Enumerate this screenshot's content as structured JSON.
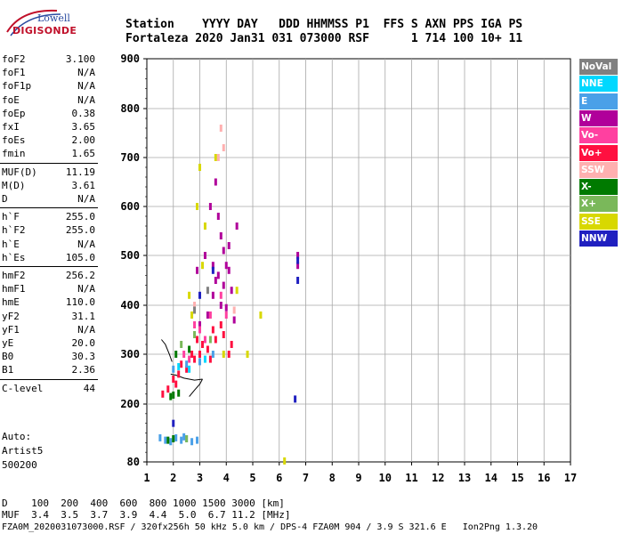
{
  "logo": {
    "line1": "Lowell",
    "line2": "DIGISONDE"
  },
  "header": {
    "row1": "Station    YYYY DAY   DDD HHMMSS P1  FFS S AXN PPS IGA PS",
    "row2": "Fortaleza 2020 Jan31 031 073000 RSF      1 714 100 10+ 11"
  },
  "params": [
    {
      "k": "foF2",
      "v": "3.100"
    },
    {
      "k": "foF1",
      "v": "N/A"
    },
    {
      "k": "foF1p",
      "v": "N/A"
    },
    {
      "k": "foE",
      "v": "N/A"
    },
    {
      "k": "foEp",
      "v": "0.38"
    },
    {
      "k": "fxI",
      "v": "3.65"
    },
    {
      "k": "foEs",
      "v": "2.00"
    },
    {
      "k": "fmin",
      "v": "1.65"
    },
    {
      "k": "MUF(D)",
      "v": "11.19"
    },
    {
      "k": "M(D)",
      "v": "3.61"
    },
    {
      "k": "D",
      "v": "N/A"
    },
    {
      "k": "h`F",
      "v": "255.0"
    },
    {
      "k": "h`F2",
      "v": "255.0"
    },
    {
      "k": "h`E",
      "v": "N/A"
    },
    {
      "k": "h`Es",
      "v": "105.0"
    },
    {
      "k": "hmF2",
      "v": "256.2"
    },
    {
      "k": "hmF1",
      "v": "N/A"
    },
    {
      "k": "hmE",
      "v": "110.0"
    },
    {
      "k": "yF2",
      "v": "31.1"
    },
    {
      "k": "yF1",
      "v": "N/A"
    },
    {
      "k": "yE",
      "v": "20.0"
    },
    {
      "k": "B0",
      "v": "30.3"
    },
    {
      "k": "B1",
      "v": "2.36"
    },
    {
      "k": "C-level",
      "v": "44"
    }
  ],
  "auto": {
    "line1": "Auto:",
    "line2": "Artist5",
    "line3": "500200"
  },
  "legend": [
    {
      "label": "NoVal",
      "color": "#808080"
    },
    {
      "label": "NNE",
      "color": "#00d8ff"
    },
    {
      "label": "E",
      "color": "#4aa0e8"
    },
    {
      "label": "W",
      "color": "#b0009a"
    },
    {
      "label": "Vo-",
      "color": "#ff40a0"
    },
    {
      "label": "Vo+",
      "color": "#ff1040"
    },
    {
      "label": "SSW",
      "color": "#ffb0b0"
    },
    {
      "label": "X-",
      "color": "#007a00"
    },
    {
      "label": "X+",
      "color": "#7ab85a"
    },
    {
      "label": "SSE",
      "color": "#d8d800"
    },
    {
      "label": "NNW",
      "color": "#2020c0"
    }
  ],
  "footer": {
    "d_row": "D    100  200  400  600  800 1000 1500 3000 [km]",
    "muf_row": "MUF  3.4  3.5  3.7  3.9  4.4  5.0  6.7 11.2 [MHz]",
    "file_row": "FZA0M_2020031073000.RSF / 320fx256h 50 kHz 5.0 km / DPS-4 FZA0M 904 / 3.9 S 321.6 E   Ion2Png 1.3.20"
  },
  "chart_data": {
    "type": "scatter",
    "title": "",
    "xlabel": "",
    "ylabel": "",
    "xlim": [
      1,
      17
    ],
    "ylim": [
      80,
      900
    ],
    "grid": true,
    "xticks": [
      1,
      2,
      3,
      4,
      5,
      6,
      7,
      8,
      9,
      10,
      11,
      12,
      13,
      14,
      15,
      16,
      17
    ],
    "yticks": [
      80,
      200,
      300,
      400,
      500,
      600,
      700,
      800,
      900
    ],
    "series": [
      {
        "name": "W",
        "color": "#b0009a",
        "points": [
          [
            3.7,
            580
          ],
          [
            3.8,
            540
          ],
          [
            3.9,
            510
          ],
          [
            4.0,
            480
          ],
          [
            4.1,
            470
          ],
          [
            3.6,
            450
          ],
          [
            3.9,
            440
          ],
          [
            4.2,
            430
          ],
          [
            3.5,
            420
          ],
          [
            3.8,
            400
          ],
          [
            4.0,
            395
          ],
          [
            3.3,
            380
          ],
          [
            4.3,
            370
          ],
          [
            3.0,
            360
          ],
          [
            3.6,
            650
          ],
          [
            3.4,
            600
          ],
          [
            3.2,
            500
          ],
          [
            2.9,
            470
          ],
          [
            4.4,
            560
          ],
          [
            6.7,
            480
          ],
          [
            6.7,
            500
          ],
          [
            3.7,
            460
          ],
          [
            4.1,
            520
          ],
          [
            3.5,
            480
          ]
        ]
      },
      {
        "name": "Vo+",
        "color": "#ff1040",
        "points": [
          [
            2.0,
            250
          ],
          [
            2.2,
            260
          ],
          [
            2.5,
            270
          ],
          [
            2.8,
            290
          ],
          [
            3.0,
            300
          ],
          [
            3.3,
            310
          ],
          [
            3.6,
            330
          ],
          [
            3.9,
            340
          ],
          [
            4.2,
            320
          ],
          [
            2.3,
            280
          ],
          [
            2.7,
            300
          ],
          [
            3.1,
            320
          ],
          [
            3.5,
            350
          ],
          [
            1.8,
            230
          ],
          [
            1.6,
            220
          ],
          [
            2.1,
            240
          ],
          [
            3.8,
            360
          ],
          [
            4.1,
            300
          ],
          [
            2.9,
            330
          ],
          [
            3.4,
            290
          ]
        ]
      },
      {
        "name": "Vo-",
        "color": "#ff40a0",
        "points": [
          [
            2.6,
            290
          ],
          [
            3.0,
            350
          ],
          [
            3.4,
            380
          ],
          [
            3.8,
            420
          ],
          [
            2.4,
            300
          ],
          [
            3.2,
            330
          ],
          [
            4.0,
            380
          ],
          [
            2.8,
            360
          ]
        ]
      },
      {
        "name": "E",
        "color": "#4aa0e8",
        "points": [
          [
            1.5,
            130
          ],
          [
            1.7,
            125
          ],
          [
            1.9,
            122
          ],
          [
            2.1,
            130
          ],
          [
            2.3,
            125
          ],
          [
            2.5,
            128
          ],
          [
            2.7,
            122
          ],
          [
            2.9,
            125
          ],
          [
            2.4,
            132
          ],
          [
            2.0,
            270
          ],
          [
            2.5,
            280
          ],
          [
            3.0,
            285
          ],
          [
            3.5,
            300
          ]
        ]
      },
      {
        "name": "NNE",
        "color": "#00d8ff",
        "points": [
          [
            2.2,
            275
          ],
          [
            2.6,
            270
          ],
          [
            3.2,
            290
          ]
        ]
      },
      {
        "name": "X-",
        "color": "#007a00",
        "points": [
          [
            1.9,
            215
          ],
          [
            2.0,
            218
          ],
          [
            2.2,
            222
          ],
          [
            2.1,
            300
          ],
          [
            2.6,
            310
          ],
          [
            1.8,
            125
          ],
          [
            2.0,
            128
          ]
        ]
      },
      {
        "name": "X+",
        "color": "#7ab85a",
        "points": [
          [
            2.3,
            320
          ],
          [
            2.8,
            340
          ],
          [
            3.4,
            330
          ],
          [
            2.5,
            128
          ]
        ]
      },
      {
        "name": "SSE",
        "color": "#d8d800",
        "points": [
          [
            3.0,
            680
          ],
          [
            2.9,
            600
          ],
          [
            3.2,
            560
          ],
          [
            3.6,
            700
          ],
          [
            4.4,
            430
          ],
          [
            2.6,
            420
          ],
          [
            3.1,
            480
          ],
          [
            2.7,
            380
          ],
          [
            3.9,
            300
          ],
          [
            5.3,
            380
          ],
          [
            6.2,
            82
          ],
          [
            4.8,
            300
          ]
        ]
      },
      {
        "name": "SSW",
        "color": "#ffb0b0",
        "points": [
          [
            3.8,
            760
          ],
          [
            3.9,
            720
          ],
          [
            3.7,
            700
          ],
          [
            4.3,
            390
          ],
          [
            2.8,
            400
          ]
        ]
      },
      {
        "name": "NNW",
        "color": "#2020c0",
        "points": [
          [
            6.7,
            490
          ],
          [
            6.7,
            450
          ],
          [
            6.6,
            210
          ],
          [
            2.0,
            160
          ],
          [
            3.5,
            470
          ],
          [
            3.0,
            420
          ]
        ]
      },
      {
        "name": "NoVal",
        "color": "#808080",
        "points": [
          [
            3.3,
            430
          ],
          [
            2.8,
            390
          ]
        ]
      }
    ],
    "traces": [
      {
        "points": [
          [
            1.9,
            260
          ],
          [
            2.1,
            258
          ],
          [
            2.4,
            252
          ],
          [
            2.8,
            248
          ],
          [
            3.1,
            250
          ]
        ]
      },
      {
        "points": [
          [
            2.6,
            215
          ],
          [
            2.8,
            228
          ],
          [
            3.0,
            240
          ],
          [
            3.1,
            250
          ]
        ]
      },
      {
        "points": [
          [
            1.55,
            330
          ],
          [
            1.7,
            320
          ],
          [
            1.85,
            300
          ],
          [
            1.95,
            285
          ]
        ]
      }
    ]
  }
}
